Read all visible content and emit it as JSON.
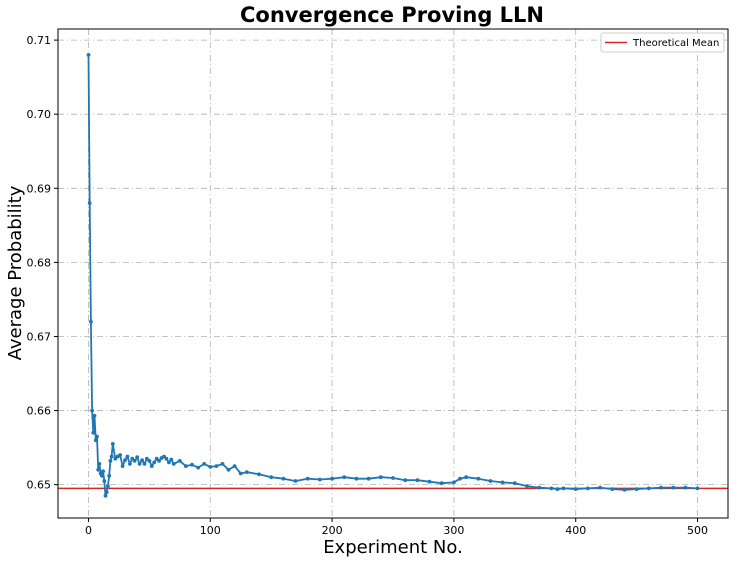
{
  "chart_data": {
    "type": "line",
    "title": "Convergence Proving LLN",
    "xlabel": "Experiment No.",
    "ylabel": "Average Probability",
    "xlim": [
      -25,
      525
    ],
    "ylim": [
      0.6455,
      0.7115
    ],
    "xticks": [
      "0",
      "100",
      "200",
      "300",
      "400",
      "500"
    ],
    "yticks": [
      "0.65",
      "0.66",
      "0.67",
      "0.68",
      "0.69",
      "0.70",
      "0.71"
    ],
    "grid": true,
    "legend_position": "top-right",
    "series": [
      {
        "color": "#1f77b4",
        "marker": "dot",
        "x": [
          0,
          1,
          2,
          3,
          4,
          5,
          6,
          7,
          8,
          9,
          10,
          11,
          12,
          13,
          14,
          15,
          16,
          17,
          18,
          19,
          20,
          22,
          24,
          26,
          28,
          30,
          32,
          34,
          36,
          38,
          40,
          42,
          44,
          46,
          48,
          50,
          52,
          54,
          56,
          58,
          60,
          62,
          64,
          66,
          68,
          70,
          75,
          80,
          85,
          90,
          95,
          100,
          105,
          110,
          115,
          120,
          125,
          130,
          140,
          150,
          160,
          170,
          180,
          190,
          200,
          210,
          220,
          230,
          240,
          250,
          260,
          270,
          280,
          290,
          300,
          305,
          310,
          320,
          330,
          340,
          350,
          360,
          370,
          380,
          385,
          390,
          400,
          410,
          420,
          430,
          440,
          450,
          460,
          470,
          480,
          490,
          500
        ],
        "values": [
          0.708,
          0.688,
          0.672,
          0.66,
          0.657,
          0.6593,
          0.656,
          0.6565,
          0.652,
          0.6528,
          0.6515,
          0.6512,
          0.6518,
          0.6505,
          0.6485,
          0.649,
          0.6498,
          0.6512,
          0.6532,
          0.6538,
          0.6555,
          0.6535,
          0.6538,
          0.654,
          0.6525,
          0.6533,
          0.6538,
          0.6528,
          0.6535,
          0.6532,
          0.6537,
          0.6528,
          0.6533,
          0.6528,
          0.6535,
          0.6532,
          0.6525,
          0.653,
          0.6535,
          0.6532,
          0.6536,
          0.6538,
          0.6535,
          0.653,
          0.6534,
          0.6528,
          0.6532,
          0.6525,
          0.6527,
          0.6523,
          0.6528,
          0.6524,
          0.6525,
          0.6528,
          0.652,
          0.6525,
          0.6515,
          0.6517,
          0.6514,
          0.651,
          0.6508,
          0.6505,
          0.6508,
          0.6507,
          0.6508,
          0.651,
          0.6508,
          0.6508,
          0.651,
          0.6509,
          0.6506,
          0.6506,
          0.6504,
          0.6502,
          0.6503,
          0.6508,
          0.651,
          0.6508,
          0.6505,
          0.6503,
          0.6502,
          0.6498,
          0.6496,
          0.6495,
          0.6494,
          0.6495,
          0.6494,
          0.6495,
          0.6496,
          0.6494,
          0.6493,
          0.6494,
          0.6495,
          0.6496,
          0.6496,
          0.6496,
          0.6495
        ]
      }
    ],
    "reference_line": {
      "label": "Theoretical Mean",
      "y": 0.6495,
      "color": "#d62728"
    }
  }
}
